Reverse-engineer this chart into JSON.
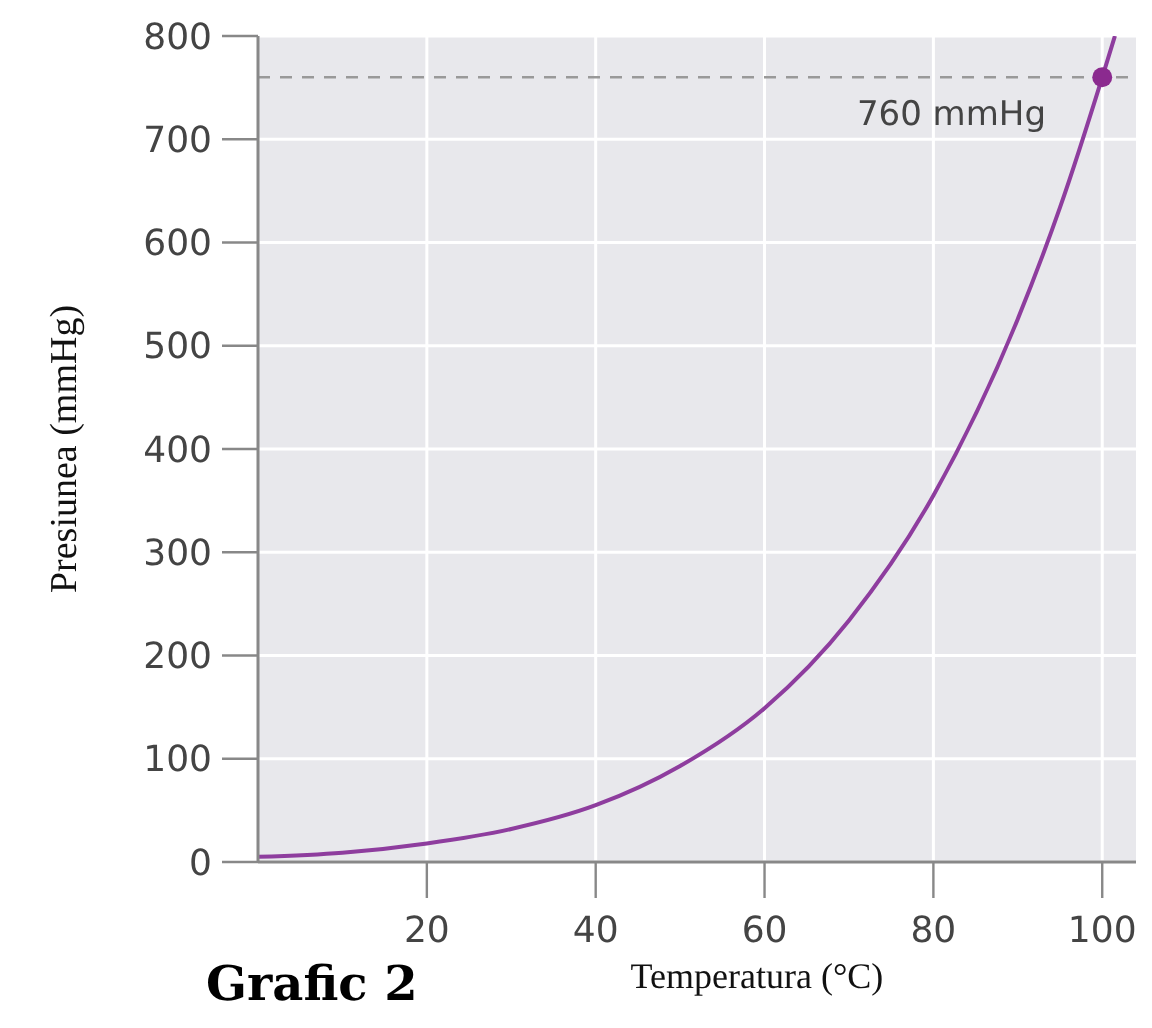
{
  "chart_data": {
    "type": "line",
    "xlabel": "Temperatura (°C)",
    "ylabel": "Presiunea (mmHg)",
    "xlim": [
      0,
      104
    ],
    "ylim": [
      0,
      800
    ],
    "xticks": [
      20,
      40,
      60,
      80,
      100
    ],
    "yticks": [
      0,
      100,
      200,
      300,
      400,
      500,
      600,
      700,
      800
    ],
    "grid": true,
    "series": [
      {
        "color": "#8e3d9e",
        "marker": "none",
        "x": [
          0,
          10,
          20,
          30,
          40,
          50,
          60,
          70,
          80,
          90,
          95,
          100,
          101.5
        ],
        "values": [
          5,
          9,
          18,
          32,
          55,
          93,
          149,
          234,
          355,
          526,
          634,
          760,
          800
        ]
      },
      {
        "type": "scatter",
        "color": "#8b2a8f",
        "marker": "circle",
        "x": [
          100
        ],
        "values": [
          760
        ]
      }
    ],
    "ref_lines": [
      {
        "axis": "y",
        "value": 760,
        "label": "760 mmHg",
        "color": "#999999",
        "line_style": "dashed"
      }
    ],
    "annotations": [
      "Grafic 2"
    ]
  }
}
